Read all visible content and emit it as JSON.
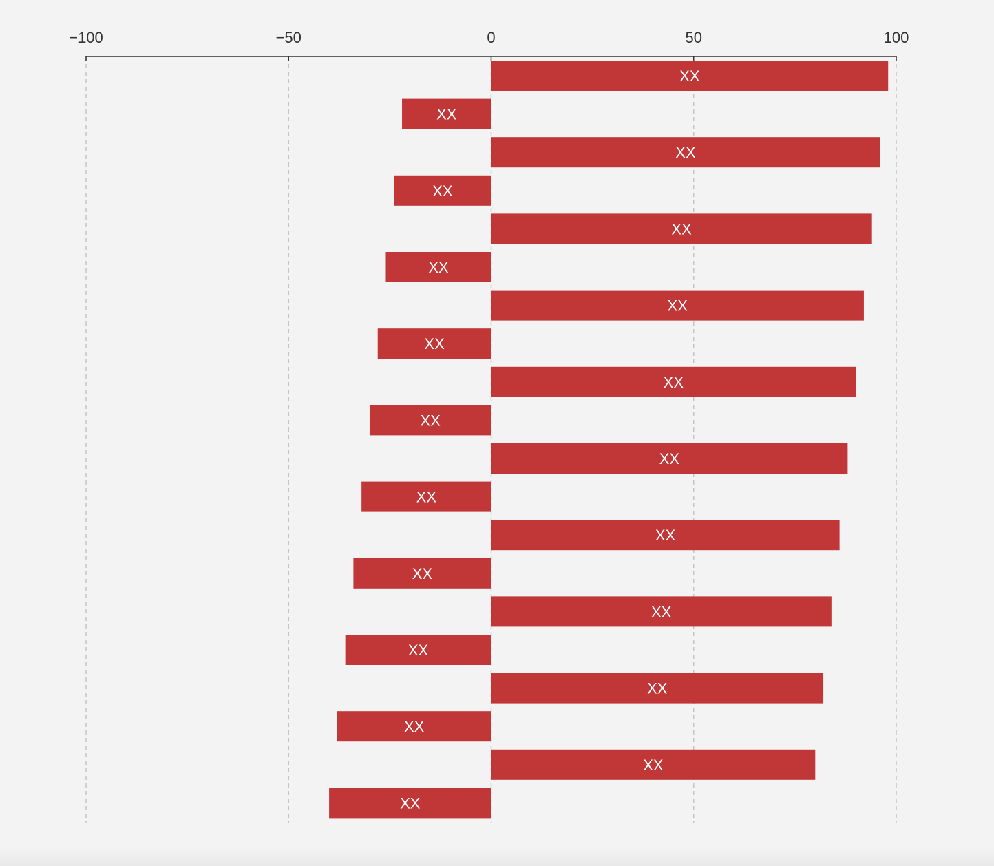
{
  "chart_data": {
    "type": "bar",
    "orientation": "horizontal",
    "xlim": [
      -100,
      100
    ],
    "xticks": [
      -100,
      -50,
      0,
      50,
      100
    ],
    "xtick_labels": [
      "−100",
      "−50",
      "0",
      "50",
      "100"
    ],
    "axis_position": "top",
    "grid": "vertical-dashed",
    "values": [
      98,
      -22,
      96,
      -24,
      94,
      -26,
      92,
      -28,
      90,
      -30,
      88,
      -32,
      86,
      -34,
      84,
      -36,
      82,
      -38,
      80,
      -40
    ],
    "data_labels": [
      "XX",
      "XX",
      "XX",
      "XX",
      "XX",
      "XX",
      "XX",
      "XX",
      "XX",
      "XX",
      "XX",
      "XX",
      "XX",
      "XX",
      "XX",
      "XX",
      "XX",
      "XX",
      "XX",
      "XX"
    ],
    "bar_color": "#c13636"
  }
}
